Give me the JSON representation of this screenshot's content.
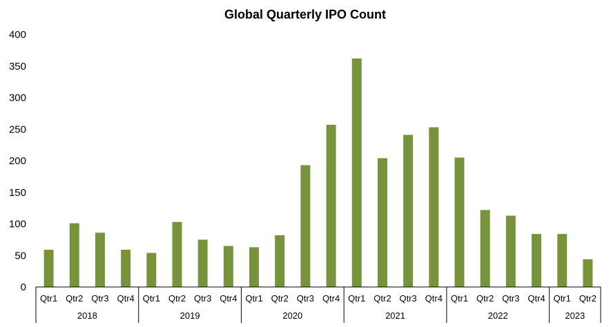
{
  "chart_data": {
    "type": "bar",
    "title": "Global Quarterly IPO Count",
    "xlabel": "",
    "ylabel": "",
    "ylim": [
      0,
      400
    ],
    "yticks": [
      0,
      50,
      100,
      150,
      200,
      250,
      300,
      350,
      400
    ],
    "grid": false,
    "legend": "none",
    "bar_color": "#77933C",
    "categories": [
      "Qtr1",
      "Qtr2",
      "Qtr3",
      "Qtr4",
      "Qtr1",
      "Qtr2",
      "Qtr3",
      "Qtr4",
      "Qtr1",
      "Qtr2",
      "Qtr3",
      "Qtr4",
      "Qtr1",
      "Qtr2",
      "Qtr3",
      "Qtr4",
      "Qtr1",
      "Qtr2",
      "Qtr3",
      "Qtr4",
      "Qtr1",
      "Qtr2"
    ],
    "years": [
      {
        "label": "2018",
        "count": 4
      },
      {
        "label": "2019",
        "count": 4
      },
      {
        "label": "2020",
        "count": 4
      },
      {
        "label": "2021",
        "count": 4
      },
      {
        "label": "2022",
        "count": 4
      },
      {
        "label": "2023",
        "count": 2
      }
    ],
    "values": [
      59,
      101,
      86,
      59,
      54,
      103,
      75,
      65,
      63,
      82,
      193,
      257,
      362,
      204,
      241,
      253,
      205,
      122,
      113,
      84,
      84,
      44
    ]
  }
}
